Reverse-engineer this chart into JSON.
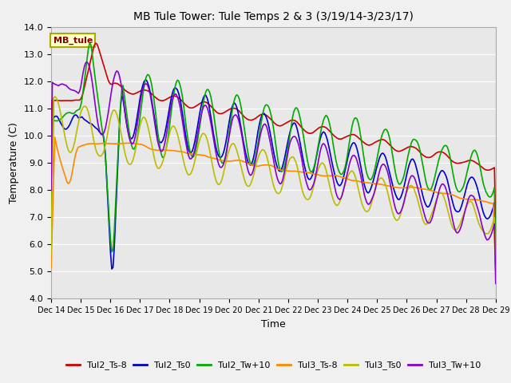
{
  "title": "MB Tule Tower: Tule Temps 2 & 3 (3/19/14-3/23/17)",
  "xlabel": "Time",
  "ylabel": "Temperature (C)",
  "ylim": [
    4.0,
    14.0
  ],
  "yticks": [
    4.0,
    5.0,
    6.0,
    7.0,
    8.0,
    9.0,
    10.0,
    11.0,
    12.0,
    13.0,
    14.0
  ],
  "series": {
    "Tul2_Ts-8": {
      "color": "#cc0000",
      "lw": 1.2
    },
    "Tul2_Ts0": {
      "color": "#0000cc",
      "lw": 1.2
    },
    "Tul2_Tw+10": {
      "color": "#00aa00",
      "lw": 1.2
    },
    "Tul3_Ts-8": {
      "color": "#ff8800",
      "lw": 1.2
    },
    "Tul3_Ts0": {
      "color": "#bbbb00",
      "lw": 1.2
    },
    "Tul3_Tw+10": {
      "color": "#8800cc",
      "lw": 1.2
    }
  },
  "annotation": {
    "text": "MB_tule",
    "fontsize": 8,
    "color": "#8b0000",
    "bbox_facecolor": "#ffffcc",
    "bbox_edgecolor": "#aaaa00"
  },
  "background_color": "#e0e0e0",
  "plot_bg_color": "#e8e8e8",
  "grid_color": "#ffffff",
  "title_fontsize": 10,
  "fig_facecolor": "#f0f0f0"
}
